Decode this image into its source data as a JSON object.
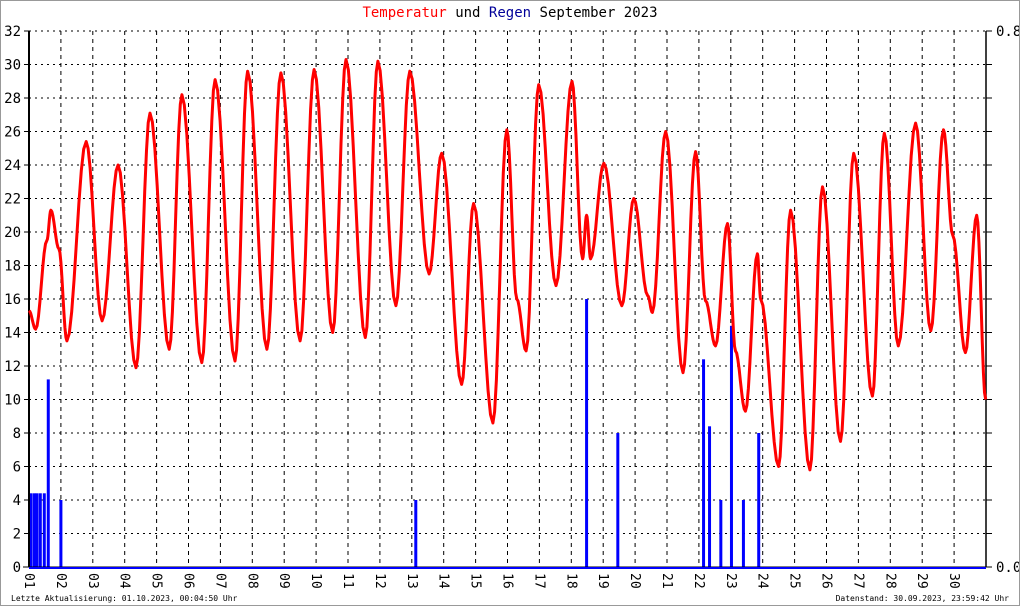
{
  "title": {
    "part1": "Temperatur",
    "part2": "und",
    "part3": "Regen",
    "part4": "September 2023"
  },
  "footer": {
    "left": "Letzte Aktualisierung: 01.10.2023, 00:04:50 Uhr",
    "right": "Datenstand: 30.09.2023, 23:59:42 Uhr"
  },
  "colors": {
    "temperature": "#ff0000",
    "rain": "#0000ff",
    "title_rain": "#000099"
  },
  "chart_data": {
    "type": "line+bar",
    "title": "Temperatur und Regen September 2023",
    "xlim": [
      "2023-09-01T00:00",
      "2023-10-01T00:00"
    ],
    "x_ticks": [
      "01",
      "02",
      "03",
      "04",
      "05",
      "06",
      "07",
      "08",
      "09",
      "10",
      "11",
      "12",
      "13",
      "14",
      "15",
      "16",
      "17",
      "18",
      "19",
      "20",
      "21",
      "22",
      "23",
      "24",
      "25",
      "26",
      "27",
      "28",
      "29",
      "30"
    ],
    "y_left": {
      "ylim": [
        0,
        32
      ],
      "ticks": [
        "0",
        "2",
        "4",
        "6",
        "8",
        "10",
        "12",
        "14",
        "16",
        "18",
        "20",
        "22",
        "24",
        "26",
        "28",
        "30",
        "32"
      ]
    },
    "y_right": {
      "ylim": [
        0.0,
        0.8
      ],
      "ticks": [
        "0.0",
        "0.8"
      ]
    },
    "grid": true,
    "series": [
      {
        "name": "Temperatur",
        "type": "line",
        "axis": "left",
        "points": [
          [
            "2023-09-01T00:00",
            15.3
          ],
          [
            "2023-09-01T05:00",
            14.2
          ],
          [
            "2023-09-01T13:30",
            19.5
          ],
          [
            "2023-09-01T16:30",
            21.3
          ],
          [
            "2023-09-01T22:30",
            19.0
          ],
          [
            "2023-09-02T04:30",
            13.5
          ],
          [
            "2023-09-02T19:00",
            25.4
          ],
          [
            "2023-09-03T07:00",
            14.7
          ],
          [
            "2023-09-03T19:00",
            24.0
          ],
          [
            "2023-09-04T08:30",
            11.9
          ],
          [
            "2023-09-04T19:00",
            27.1
          ],
          [
            "2023-09-05T09:30",
            13.0
          ],
          [
            "2023-09-05T19:00",
            28.2
          ],
          [
            "2023-09-06T10:00",
            12.2
          ],
          [
            "2023-09-06T20:00",
            29.1
          ],
          [
            "2023-09-07T11:00",
            12.3
          ],
          [
            "2023-09-07T20:30",
            29.6
          ],
          [
            "2023-09-08T11:00",
            13.0
          ],
          [
            "2023-09-08T21:30",
            29.5
          ],
          [
            "2023-09-09T12:00",
            13.5
          ],
          [
            "2023-09-09T22:30",
            29.7
          ],
          [
            "2023-09-10T12:30",
            14.0
          ],
          [
            "2023-09-10T22:30",
            30.3
          ],
          [
            "2023-09-11T13:00",
            13.7
          ],
          [
            "2023-09-11T22:30",
            30.2
          ],
          [
            "2023-09-12T12:00",
            15.6
          ],
          [
            "2023-09-12T22:30",
            29.6
          ],
          [
            "2023-09-13T13:00",
            17.5
          ],
          [
            "2023-09-13T22:30",
            24.7
          ],
          [
            "2023-09-14T13:30",
            10.9
          ],
          [
            "2023-09-14T22:30",
            21.7
          ],
          [
            "2023-09-15T13:00",
            8.6
          ],
          [
            "2023-09-15T23:30",
            26.1
          ],
          [
            "2023-09-16T07:00",
            16.0
          ],
          [
            "2023-09-16T14:00",
            12.9
          ],
          [
            "2023-09-16T23:30",
            28.8
          ],
          [
            "2023-09-17T12:30",
            16.8
          ],
          [
            "2023-09-18T00:30",
            29.0
          ],
          [
            "2023-09-18T08:30",
            18.4
          ],
          [
            "2023-09-18T11:30",
            21.0
          ],
          [
            "2023-09-18T14:30",
            18.4
          ],
          [
            "2023-09-19T00:30",
            24.1
          ],
          [
            "2023-09-19T14:00",
            15.6
          ],
          [
            "2023-09-19T23:00",
            22.0
          ],
          [
            "2023-09-20T09:30",
            16.2
          ],
          [
            "2023-09-20T13:00",
            15.2
          ],
          [
            "2023-09-20T23:00",
            26.0
          ],
          [
            "2023-09-21T12:00",
            11.6
          ],
          [
            "2023-09-21T21:30",
            24.8
          ],
          [
            "2023-09-22T05:00",
            15.9
          ],
          [
            "2023-09-22T12:30",
            13.2
          ],
          [
            "2023-09-22T21:30",
            20.5
          ],
          [
            "2023-09-23T03:30",
            12.9
          ],
          [
            "2023-09-23T11:00",
            9.3
          ],
          [
            "2023-09-23T20:00",
            18.7
          ],
          [
            "2023-09-23T22:30",
            16.0
          ],
          [
            "2023-09-24T12:00",
            6.0
          ],
          [
            "2023-09-24T21:00",
            21.3
          ],
          [
            "2023-09-25T11:30",
            5.8
          ],
          [
            "2023-09-25T21:00",
            22.7
          ],
          [
            "2023-09-26T10:30",
            7.5
          ],
          [
            "2023-09-26T20:30",
            24.7
          ],
          [
            "2023-09-27T10:30",
            10.2
          ],
          [
            "2023-09-27T19:30",
            25.9
          ],
          [
            "2023-09-28T06:00",
            13.2
          ],
          [
            "2023-09-28T19:00",
            26.5
          ],
          [
            "2023-09-29T06:30",
            14.1
          ],
          [
            "2023-09-29T16:00",
            26.1
          ],
          [
            "2023-09-29T23:00",
            19.8
          ],
          [
            "2023-09-30T08:30",
            12.8
          ],
          [
            "2023-09-30T17:00",
            21.0
          ],
          [
            "2023-09-30T23:45",
            10.0
          ]
        ]
      },
      {
        "name": "Regen",
        "type": "bar",
        "axis": "right",
        "points": [
          [
            "2023-09-01T01:30",
            0.11
          ],
          [
            "2023-09-01T04:00",
            0.11
          ],
          [
            "2023-09-01T06:00",
            0.11
          ],
          [
            "2023-09-01T08:30",
            0.11
          ],
          [
            "2023-09-01T11:30",
            0.11
          ],
          [
            "2023-09-01T14:30",
            0.28
          ],
          [
            "2023-09-02T00:00",
            0.1
          ],
          [
            "2023-09-13T03:00",
            0.1
          ],
          [
            "2023-09-18T11:30",
            0.4
          ],
          [
            "2023-09-19T11:00",
            0.2
          ],
          [
            "2023-09-22T03:30",
            0.31
          ],
          [
            "2023-09-22T08:00",
            0.21
          ],
          [
            "2023-09-22T16:30",
            0.1
          ],
          [
            "2023-09-23T00:30",
            0.36
          ],
          [
            "2023-09-23T09:30",
            0.1
          ],
          [
            "2023-09-23T21:00",
            0.2
          ]
        ]
      }
    ]
  }
}
